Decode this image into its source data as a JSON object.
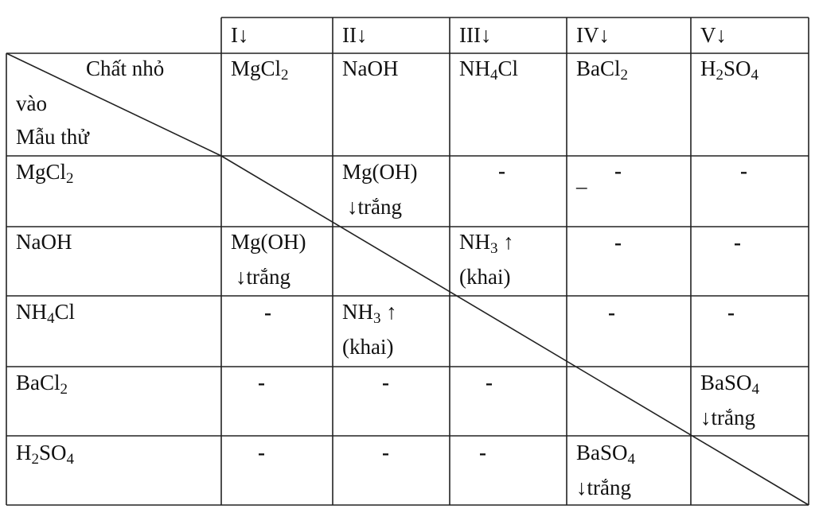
{
  "col_headers": [
    "I↓",
    "II↓",
    "III↓",
    "IV↓",
    "V↓"
  ],
  "corner": {
    "top": "Chất nhỏ",
    "middle": "vào",
    "bottom": "Mẫu thử"
  },
  "dropped": [
    {
      "main": "MgCl",
      "sub": "2",
      "tail": ""
    },
    {
      "main": "NaOH",
      "sub": "",
      "tail": ""
    },
    {
      "main": "NH",
      "sub": "4",
      "tail": "Cl"
    },
    {
      "main": "BaCl",
      "sub": "2",
      "tail": ""
    },
    {
      "main": "H",
      "sub": "2",
      "tail": "SO",
      "sub2": "4"
    }
  ],
  "rows": [
    {
      "label": {
        "main": "MgCl",
        "sub": "2",
        "tail": ""
      }
    },
    {
      "label": {
        "main": "NaOH",
        "sub": "",
        "tail": ""
      }
    },
    {
      "label": {
        "main": "NH",
        "sub": "4",
        "tail": "Cl"
      }
    },
    {
      "label": {
        "main": "BaCl",
        "sub": "2",
        "tail": ""
      }
    },
    {
      "label": {
        "main": "H",
        "sub": "2",
        "tail": "SO",
        "sub2": "4"
      }
    }
  ],
  "results": {
    "mgoh_line1": "Mg(OH)",
    "mgoh_line2": "↓trắng",
    "nh3_line1": "NH",
    "nh3_sub": "3",
    "nh3_arrow": " ↑",
    "nh3_line2": "(khai)",
    "baso4_main": "BaSO",
    "baso4_sub": "4",
    "baso4_line2": "↓trắng",
    "none": "-",
    "underscore": "_"
  }
}
